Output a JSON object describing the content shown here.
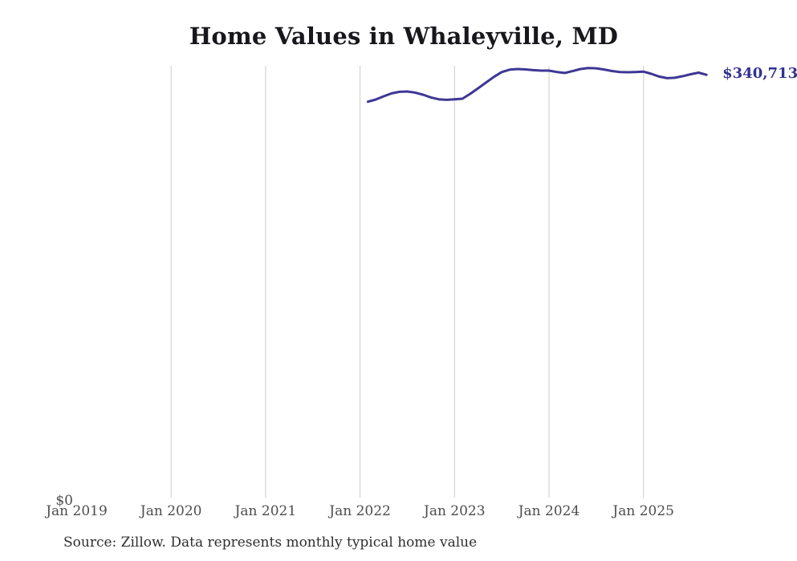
{
  "chart_data": {
    "type": "line",
    "title": "Home Values in Whaleyville, MD",
    "source_note": "Source: Zillow. Data represents monthly typical home value",
    "legend": "none",
    "grid": "vertical-only",
    "x": [
      "Feb 2022",
      "Mar 2022",
      "Apr 2022",
      "May 2022",
      "Jun 2022",
      "Jul 2022",
      "Aug 2022",
      "Sep 2022",
      "Oct 2022",
      "Nov 2022",
      "Dec 2022",
      "Jan 2023",
      "Feb 2023",
      "Mar 2023",
      "Apr 2023",
      "May 2023",
      "Jun 2023",
      "Jul 2023",
      "Aug 2023",
      "Sep 2023",
      "Oct 2023",
      "Nov 2023",
      "Dec 2023",
      "Jan 2024",
      "Feb 2024",
      "Mar 2024",
      "Apr 2024",
      "May 2024",
      "Jun 2024",
      "Jul 2024",
      "Aug 2024",
      "Sep 2024",
      "Oct 2024",
      "Nov 2024",
      "Dec 2024",
      "Jan 2025",
      "Feb 2025",
      "Mar 2025",
      "Apr 2025",
      "May 2025",
      "Jun 2025",
      "Jul 2025",
      "Aug 2025",
      "Sep 2025"
    ],
    "values": [
      318900,
      320700,
      323300,
      325600,
      326900,
      327200,
      326300,
      324600,
      322400,
      320900,
      320400,
      320800,
      321300,
      325300,
      329800,
      334400,
      339000,
      342900,
      344900,
      345400,
      345100,
      344500,
      344100,
      344100,
      343000,
      342200,
      343700,
      345400,
      346200,
      346000,
      345000,
      343800,
      343000,
      342800,
      343000,
      343300,
      341500,
      339300,
      338000,
      338300,
      339600,
      341200,
      342500,
      340713
    ],
    "start_month_index": 37,
    "x_ticks": [
      {
        "label": "Jan 2019",
        "month_index": 0,
        "gridline": false
      },
      {
        "label": "Jan 2020",
        "month_index": 12,
        "gridline": true
      },
      {
        "label": "Jan 2021",
        "month_index": 24,
        "gridline": true
      },
      {
        "label": "Jan 2022",
        "month_index": 36,
        "gridline": true
      },
      {
        "label": "Jan 2023",
        "month_index": 48,
        "gridline": true
      },
      {
        "label": "Jan 2024",
        "month_index": 60,
        "gridline": true
      },
      {
        "label": "Jan 2025",
        "month_index": 72,
        "gridline": true
      }
    ],
    "y_axis": {
      "min": 0,
      "max": 348000,
      "zero_label": "$0"
    },
    "latest_value": 340713,
    "latest_value_label": "$340,713",
    "colors": {
      "line": "#3e3695",
      "latest_label": "#32318f",
      "grid": "#cbcbcb",
      "title": "#17171c",
      "axis_text": "#4d4d4d",
      "source_text": "#2e2e2e"
    }
  }
}
